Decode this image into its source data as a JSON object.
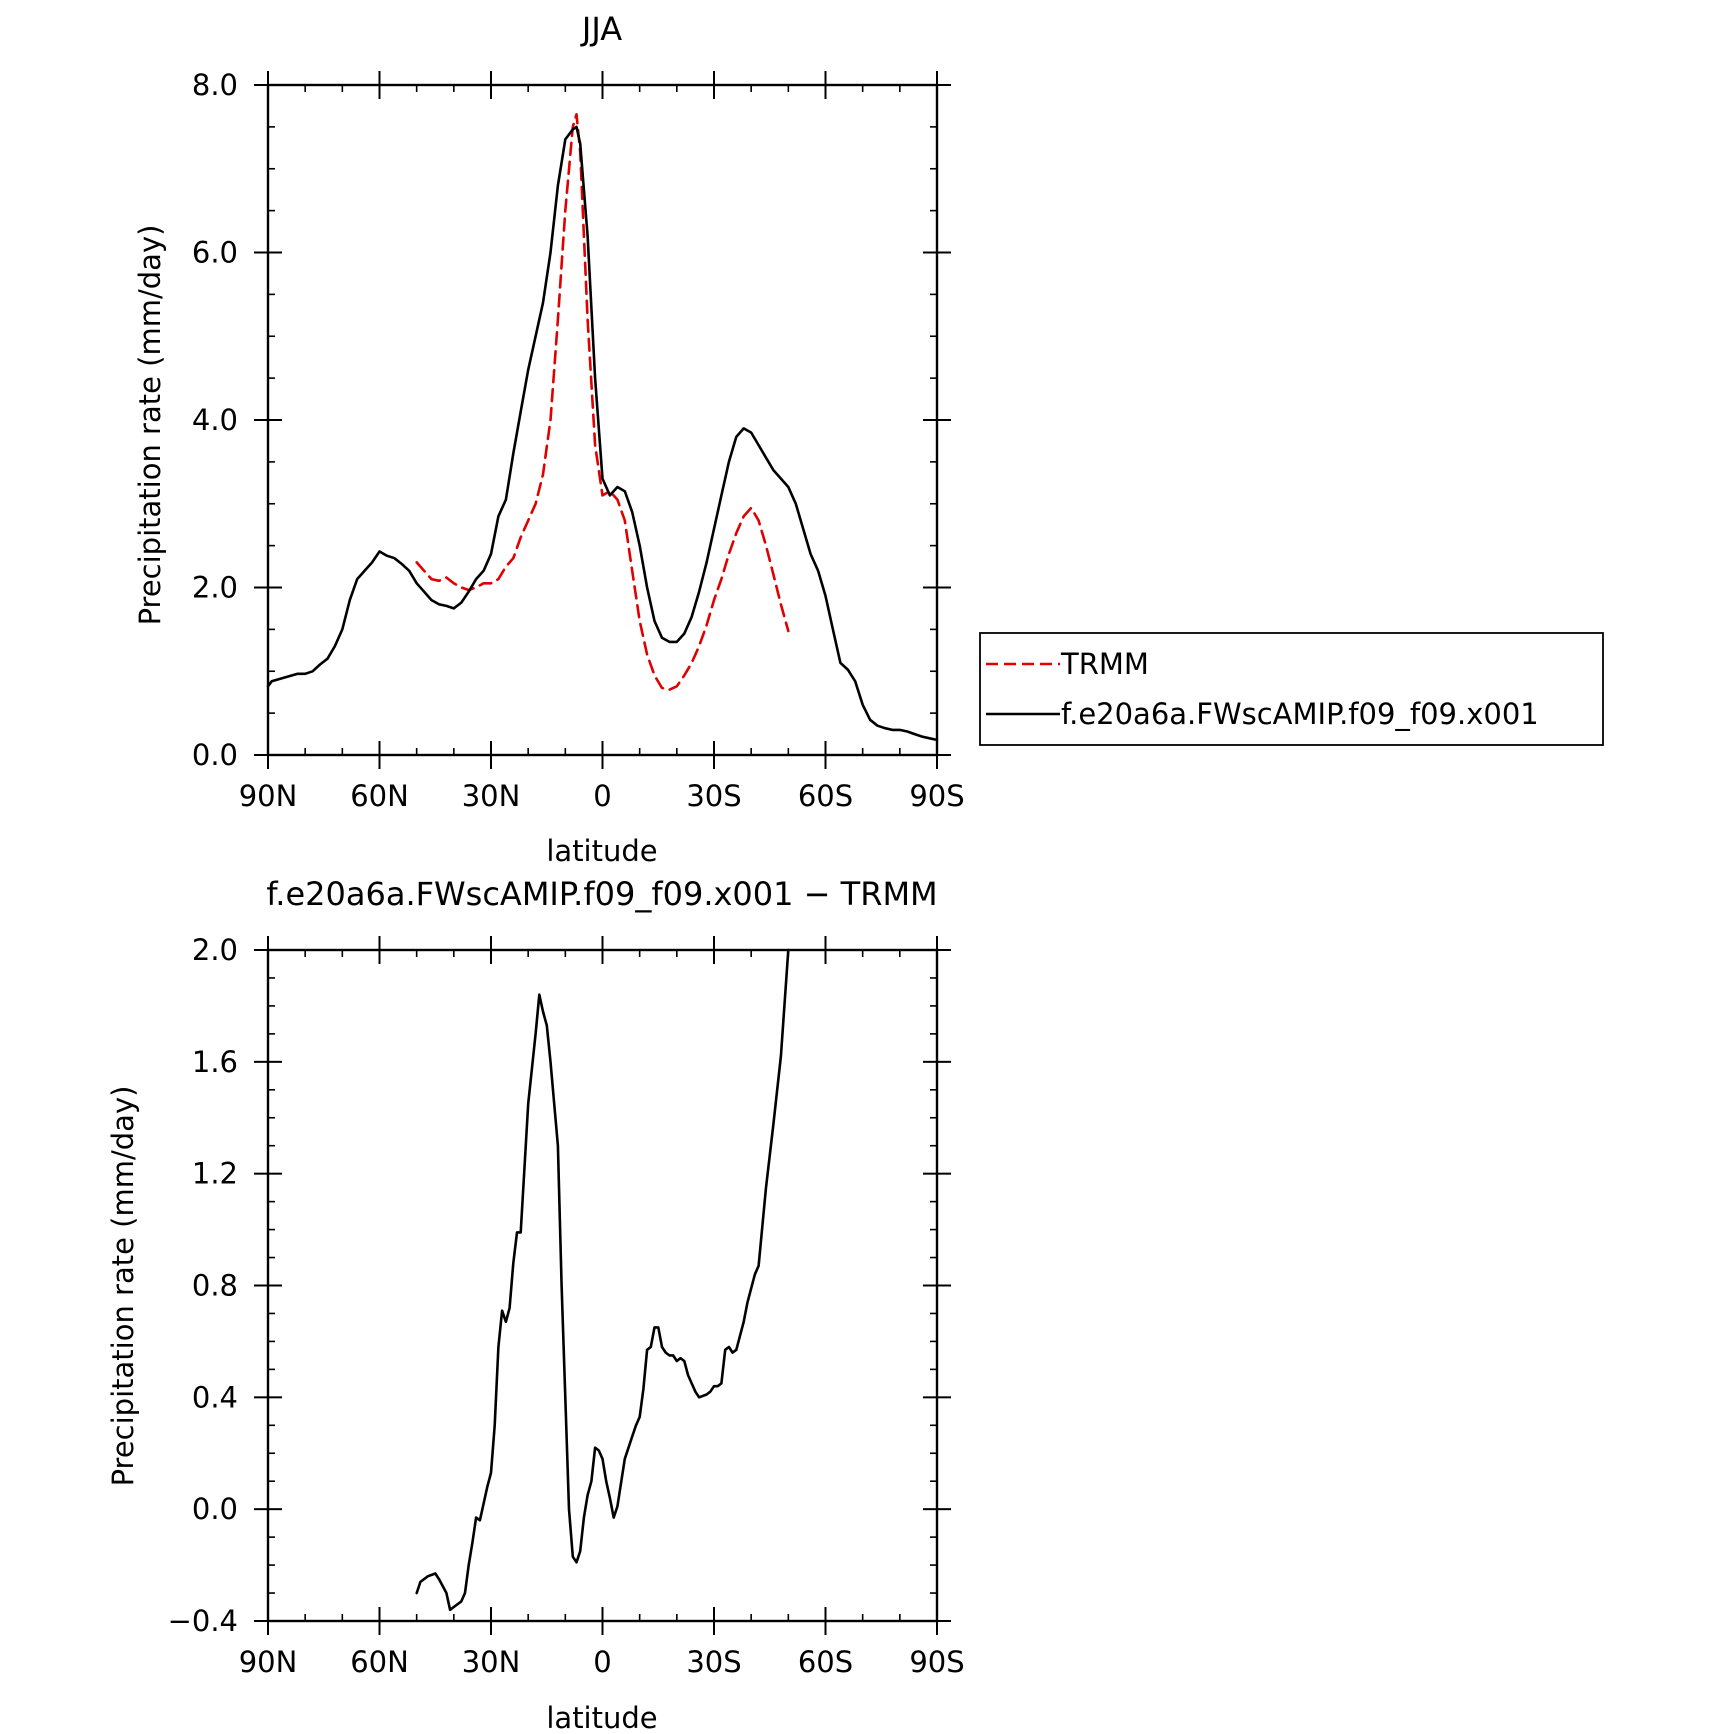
{
  "chart_data": [
    {
      "type": "line",
      "title": "JJA",
      "xlabel": "latitude",
      "ylabel": "Precipitation rate (mm/day)",
      "xlim": [
        90,
        -90
      ],
      "ylim": [
        0.0,
        8.0
      ],
      "x_ticks": [
        {
          "value": 90,
          "label": "90N"
        },
        {
          "value": 60,
          "label": "60N"
        },
        {
          "value": 30,
          "label": "30N"
        },
        {
          "value": 0,
          "label": "0"
        },
        {
          "value": -30,
          "label": "30S"
        },
        {
          "value": -60,
          "label": "60S"
        },
        {
          "value": -90,
          "label": "90S"
        }
      ],
      "y_ticks": [
        {
          "value": 0.0,
          "label": "0.0"
        },
        {
          "value": 2.0,
          "label": "2.0"
        },
        {
          "value": 4.0,
          "label": "4.0"
        },
        {
          "value": 6.0,
          "label": "6.0"
        },
        {
          "value": 8.0,
          "label": "8.0"
        }
      ],
      "legend_position": "right",
      "series": [
        {
          "name": "TRMM",
          "color": "#e00000",
          "dash": "dashed",
          "x": [
            50,
            48,
            46,
            44,
            42,
            40,
            38,
            36,
            34,
            32,
            30,
            28,
            26,
            24,
            22,
            20,
            18,
            16,
            14,
            12,
            10,
            8,
            7,
            6,
            4,
            2,
            0,
            -2,
            -4,
            -6,
            -8,
            -10,
            -12,
            -14,
            -16,
            -18,
            -20,
            -22,
            -24,
            -26,
            -28,
            -30,
            -32,
            -34,
            -36,
            -38,
            -40,
            -42,
            -44,
            -46,
            -48,
            -50
          ],
          "y": [
            2.3,
            2.2,
            2.1,
            2.08,
            2.12,
            2.05,
            2.0,
            1.97,
            2.0,
            2.05,
            2.05,
            2.1,
            2.25,
            2.35,
            2.6,
            2.8,
            3.0,
            3.35,
            4.0,
            5.2,
            6.5,
            7.5,
            7.65,
            7.2,
            5.2,
            3.7,
            3.1,
            3.15,
            3.05,
            2.8,
            2.2,
            1.6,
            1.2,
            0.95,
            0.8,
            0.78,
            0.82,
            0.95,
            1.1,
            1.3,
            1.55,
            1.85,
            2.1,
            2.4,
            2.65,
            2.85,
            2.95,
            2.8,
            2.5,
            2.15,
            1.8,
            1.48
          ]
        },
        {
          "name": "f.e20a6a.FWscAMIP.f09_f09.x001",
          "color": "#000000",
          "dash": "solid",
          "x": [
            90,
            89,
            86,
            82,
            80,
            78,
            76,
            74,
            72,
            70,
            68,
            66,
            64,
            62,
            60,
            58,
            56,
            54,
            52,
            50,
            48,
            46,
            44,
            42,
            40,
            38,
            36,
            34,
            32,
            30,
            28,
            26,
            24,
            22,
            20,
            18,
            16,
            14,
            12,
            10,
            8,
            7,
            6,
            4,
            2,
            0,
            -2,
            -4,
            -6,
            -8,
            -10,
            -12,
            -14,
            -16,
            -18,
            -20,
            -22,
            -24,
            -26,
            -28,
            -30,
            -32,
            -34,
            -36,
            -38,
            -40,
            -42,
            -44,
            -46,
            -48,
            -50,
            -52,
            -54,
            -56,
            -58,
            -60,
            -62,
            -64,
            -66,
            -68,
            -70,
            -72,
            -74,
            -76,
            -78,
            -80,
            -82,
            -84,
            -86,
            -88,
            -90
          ],
          "y": [
            0.82,
            0.88,
            0.92,
            0.97,
            0.97,
            1.0,
            1.08,
            1.15,
            1.3,
            1.5,
            1.85,
            2.1,
            2.2,
            2.3,
            2.43,
            2.38,
            2.35,
            2.28,
            2.2,
            2.05,
            1.95,
            1.85,
            1.8,
            1.78,
            1.75,
            1.82,
            1.95,
            2.1,
            2.2,
            2.4,
            2.85,
            3.05,
            3.6,
            4.1,
            4.6,
            5.0,
            5.4,
            6.0,
            6.8,
            7.35,
            7.47,
            7.5,
            7.3,
            6.2,
            4.5,
            3.3,
            3.1,
            3.2,
            3.15,
            2.9,
            2.5,
            2.0,
            1.6,
            1.4,
            1.35,
            1.35,
            1.45,
            1.65,
            1.95,
            2.3,
            2.7,
            3.1,
            3.5,
            3.8,
            3.9,
            3.85,
            3.7,
            3.55,
            3.4,
            3.3,
            3.2,
            3.0,
            2.7,
            2.4,
            2.2,
            1.9,
            1.5,
            1.1,
            1.02,
            0.88,
            0.6,
            0.42,
            0.35,
            0.32,
            0.3,
            0.3,
            0.28,
            0.25,
            0.22,
            0.2,
            0.18
          ]
        }
      ]
    },
    {
      "type": "line",
      "title": "f.e20a6a.FWscAMIP.f09_f09.x001 − TRMM",
      "xlabel": "latitude",
      "ylabel": "Precipitation rate (mm/day)",
      "xlim": [
        90,
        -90
      ],
      "ylim": [
        -0.4,
        2.0
      ],
      "x_ticks": [
        {
          "value": 90,
          "label": "90N"
        },
        {
          "value": 60,
          "label": "60N"
        },
        {
          "value": 30,
          "label": "30N"
        },
        {
          "value": 0,
          "label": "0"
        },
        {
          "value": -30,
          "label": "30S"
        },
        {
          "value": -60,
          "label": "60S"
        },
        {
          "value": -90,
          "label": "90S"
        }
      ],
      "y_ticks": [
        {
          "value": -0.4,
          "label": "−0.4"
        },
        {
          "value": 0.0,
          "label": "0.0"
        },
        {
          "value": 0.4,
          "label": "0.4"
        },
        {
          "value": 0.8,
          "label": "0.8"
        },
        {
          "value": 1.2,
          "label": "1.2"
        },
        {
          "value": 1.6,
          "label": "1.6"
        },
        {
          "value": 2.0,
          "label": "2.0"
        }
      ],
      "series": [
        {
          "name": "",
          "color": "#000000",
          "dash": "solid",
          "x": [
            50,
            49,
            47,
            45,
            44,
            42,
            41,
            40,
            38,
            37,
            36,
            35,
            34,
            33,
            32,
            31,
            30,
            29,
            28,
            27,
            26,
            25,
            24,
            23,
            22,
            20,
            18,
            17,
            16,
            15,
            14,
            12,
            11,
            10,
            9,
            8,
            7,
            6,
            5,
            4,
            3,
            2,
            1,
            0,
            -1,
            -2,
            -3,
            -4,
            -6,
            -7,
            -8,
            -9,
            -10,
            -11,
            -12,
            -13,
            -14,
            -15,
            -16,
            -17,
            -18,
            -19,
            -20,
            -21,
            -22,
            -23,
            -24,
            -25,
            -26,
            -28,
            -29,
            -30,
            -31,
            -32,
            -33,
            -34,
            -35,
            -36,
            -37,
            -38,
            -39,
            -40,
            -41,
            -42,
            -44,
            -46,
            -48,
            -50
          ],
          "y": [
            -0.3,
            -0.26,
            -0.24,
            -0.23,
            -0.25,
            -0.3,
            -0.36,
            -0.35,
            -0.33,
            -0.3,
            -0.2,
            -0.12,
            -0.03,
            -0.04,
            0.02,
            0.08,
            0.13,
            0.3,
            0.58,
            0.71,
            0.67,
            0.72,
            0.88,
            0.99,
            0.99,
            1.45,
            1.7,
            1.84,
            1.78,
            1.73,
            1.6,
            1.3,
            0.8,
            0.4,
            0.0,
            -0.17,
            -0.19,
            -0.15,
            -0.03,
            0.05,
            0.1,
            0.22,
            0.21,
            0.18,
            0.1,
            0.04,
            -0.03,
            0.01,
            0.18,
            0.22,
            0.26,
            0.3,
            0.33,
            0.43,
            0.57,
            0.58,
            0.65,
            0.65,
            0.58,
            0.56,
            0.55,
            0.55,
            0.53,
            0.54,
            0.53,
            0.48,
            0.45,
            0.42,
            0.4,
            0.41,
            0.42,
            0.44,
            0.44,
            0.45,
            0.57,
            0.58,
            0.56,
            0.57,
            0.62,
            0.67,
            0.74,
            0.79,
            0.84,
            0.87,
            1.15,
            1.38,
            1.62,
            2.0
          ]
        }
      ]
    }
  ]
}
